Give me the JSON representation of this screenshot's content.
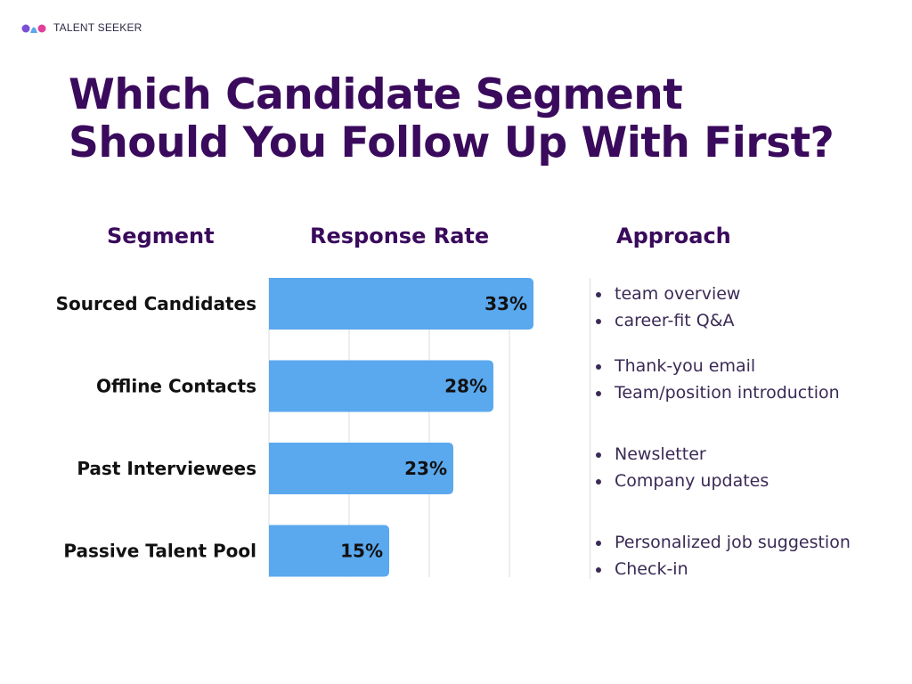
{
  "brand": {
    "name": "TALENT SEEKER",
    "colors": [
      "#7b4fd6",
      "#e0409a",
      "#5aa8ee"
    ]
  },
  "title_lines": [
    "Which Candidate Segment",
    "Should You Follow Up With First?"
  ],
  "headers": {
    "segment": "Segment",
    "rate": "Response Rate",
    "approach": "Approach"
  },
  "colors": {
    "title": "#3a0a5c",
    "bar": "#5aa8ee",
    "grid": "#dcdcdc"
  },
  "chart_data": {
    "type": "bar",
    "orientation": "horizontal",
    "categories": [
      "Sourced Candidates",
      "Offline Contacts",
      "Past Interviewees",
      "Passive Talent Pool"
    ],
    "values": [
      33,
      28,
      23,
      15
    ],
    "value_labels": [
      "33%",
      "28%",
      "23%",
      "15%"
    ],
    "unit": "%",
    "xlim": [
      0,
      40
    ],
    "grid": true
  },
  "approaches": [
    [
      "team overview",
      "career-fit Q&A"
    ],
    [
      "Thank-you email",
      "Team/position introduction"
    ],
    [
      "Newsletter",
      "Company updates"
    ],
    [
      "Personalized job suggestion",
      "Check-in"
    ]
  ]
}
